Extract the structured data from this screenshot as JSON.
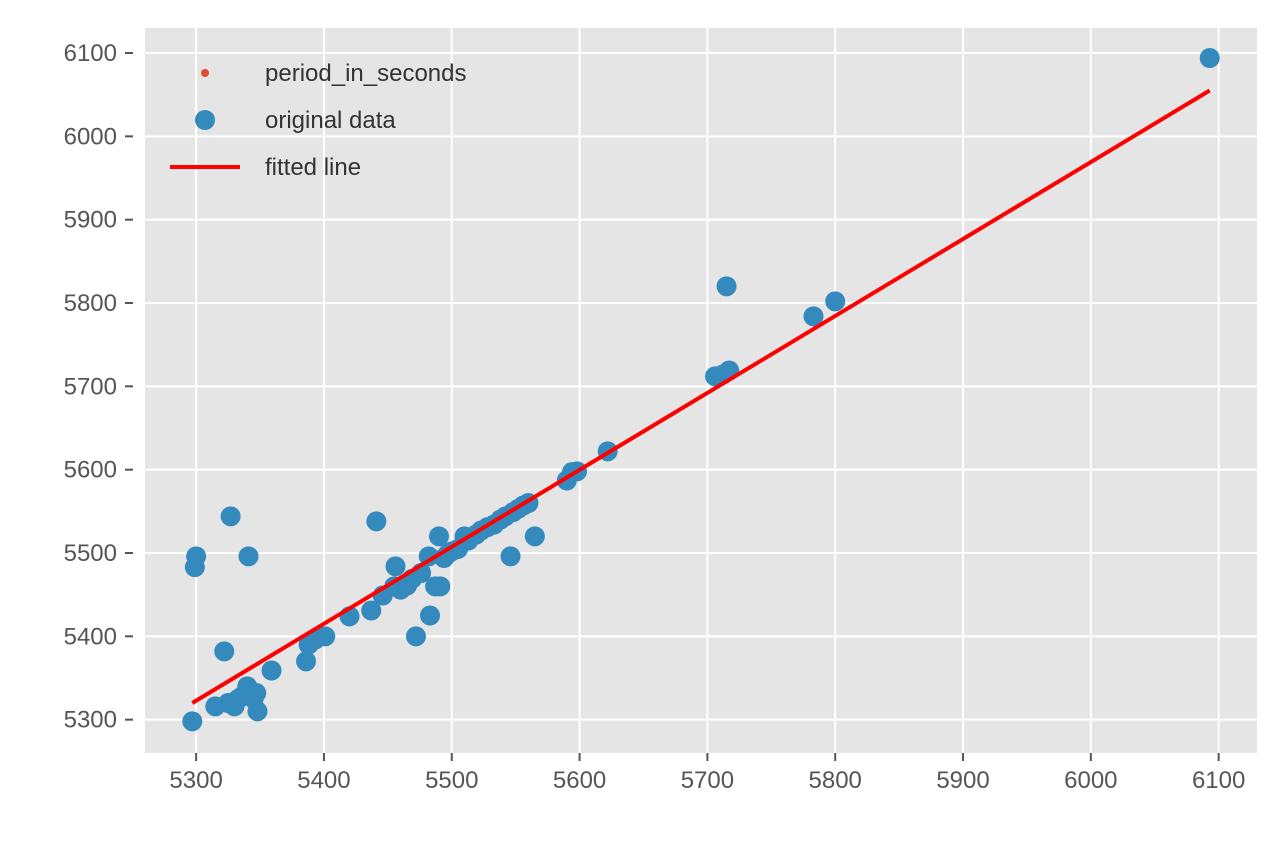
{
  "chart_data": {
    "type": "scatter",
    "title": "",
    "xlabel": "",
    "ylabel": "",
    "xlim": [
      5260,
      6130
    ],
    "ylim": [
      5260,
      6130
    ],
    "xticks": [
      5300,
      5400,
      5500,
      5600,
      5700,
      5800,
      5900,
      6000,
      6100
    ],
    "yticks": [
      5300,
      5400,
      5500,
      5600,
      5700,
      5800,
      5900,
      6000,
      6100
    ],
    "grid": true,
    "legend_position": "top-left",
    "legend": [
      {
        "label": "period_in_seconds",
        "marker": "small-dot",
        "color": "#E24A33"
      },
      {
        "label": "original data",
        "marker": "dot",
        "color": "#348ABD"
      },
      {
        "label": "fitted line",
        "marker": "line",
        "color": "#FF0000"
      }
    ],
    "series": [
      {
        "name": "original data",
        "kind": "scatter",
        "color": "#348ABD",
        "points": [
          [
            5297,
            5298
          ],
          [
            5299,
            5483
          ],
          [
            5300,
            5496
          ],
          [
            5315,
            5316
          ],
          [
            5322,
            5382
          ],
          [
            5325,
            5320
          ],
          [
            5327,
            5544
          ],
          [
            5330,
            5316
          ],
          [
            5333,
            5325
          ],
          [
            5336,
            5328
          ],
          [
            5340,
            5340
          ],
          [
            5341,
            5496
          ],
          [
            5345,
            5325
          ],
          [
            5347,
            5332
          ],
          [
            5348,
            5310
          ],
          [
            5359,
            5359
          ],
          [
            5386,
            5370
          ],
          [
            5388,
            5390
          ],
          [
            5393,
            5396
          ],
          [
            5401,
            5400
          ],
          [
            5420,
            5424
          ],
          [
            5437,
            5431
          ],
          [
            5441,
            5538
          ],
          [
            5446,
            5449
          ],
          [
            5455,
            5460
          ],
          [
            5456,
            5484
          ],
          [
            5460,
            5456
          ],
          [
            5465,
            5461
          ],
          [
            5469,
            5469
          ],
          [
            5472,
            5400
          ],
          [
            5476,
            5476
          ],
          [
            5482,
            5496
          ],
          [
            5483,
            5425
          ],
          [
            5487,
            5460
          ],
          [
            5490,
            5520
          ],
          [
            5491,
            5460
          ],
          [
            5494,
            5494
          ],
          [
            5497,
            5499
          ],
          [
            5500,
            5502
          ],
          [
            5505,
            5505
          ],
          [
            5510,
            5520
          ],
          [
            5513,
            5515
          ],
          [
            5519,
            5522
          ],
          [
            5523,
            5527
          ],
          [
            5528,
            5531
          ],
          [
            5533,
            5534
          ],
          [
            5538,
            5540
          ],
          [
            5542,
            5544
          ],
          [
            5546,
            5496
          ],
          [
            5548,
            5549
          ],
          [
            5552,
            5553
          ],
          [
            5556,
            5557
          ],
          [
            5560,
            5560
          ],
          [
            5565,
            5520
          ],
          [
            5590,
            5587
          ],
          [
            5594,
            5597
          ],
          [
            5598,
            5598
          ],
          [
            5622,
            5622
          ],
          [
            5706,
            5712
          ],
          [
            5712,
            5714
          ],
          [
            5715,
            5820
          ],
          [
            5717,
            5719
          ],
          [
            5783,
            5784
          ],
          [
            5800,
            5802
          ],
          [
            6093,
            6094
          ]
        ]
      },
      {
        "name": "fitted line",
        "kind": "line",
        "color": "#FF0000",
        "points": [
          [
            5297,
            5320
          ],
          [
            6093,
            6055
          ]
        ]
      }
    ]
  }
}
